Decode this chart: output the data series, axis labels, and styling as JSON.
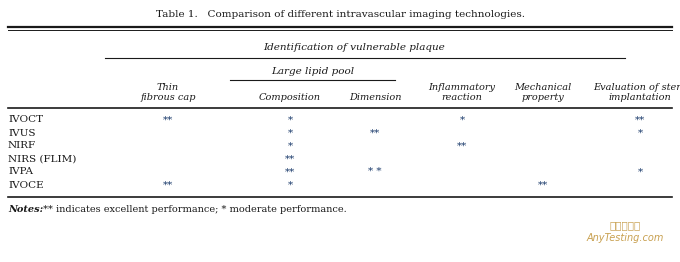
{
  "title": "Table 1.   Comparison of different intravascular imaging technologies.",
  "title_fontsize": 7.5,
  "group_header": "Identification of vulnerable plaque",
  "subgroup_header": "Large lipid pool",
  "col_headers_line1": [
    "Thin",
    "Composition",
    "Dimension",
    "Inflammatory",
    "Mechanical",
    "Evaluation of stent"
  ],
  "col_headers_line2": [
    "fibrous cap",
    "",
    "",
    "reaction",
    "property",
    "implantation"
  ],
  "rows": [
    [
      "IVOCT",
      "**",
      "*",
      "",
      "*",
      "",
      "**"
    ],
    [
      "IVUS",
      "",
      "*",
      "**",
      "",
      "",
      "*"
    ],
    [
      "NIRF",
      "",
      "*",
      "",
      "**",
      "",
      ""
    ],
    [
      "NIRS (FLIM)",
      "",
      "**",
      "",
      "",
      "",
      ""
    ],
    [
      "IVPA",
      "",
      "**",
      "* *",
      "",
      "",
      "*"
    ],
    [
      "IVOCE",
      "**",
      "*",
      "",
      "",
      "**",
      ""
    ]
  ],
  "notes_italic": "Notes:",
  "notes_rest": " ** indicates excellent performance; * moderate performance.",
  "star_color": "#1a3a6b",
  "text_color": "#1a1a1a",
  "bg_color": "#ffffff",
  "line_color": "#1a1a1a",
  "watermark1": "嘉峨检测网",
  "watermark2": "AnyTesting.com",
  "watermark_color": "#c8a050",
  "figw": 6.8,
  "figh": 2.62,
  "dpi": 100
}
